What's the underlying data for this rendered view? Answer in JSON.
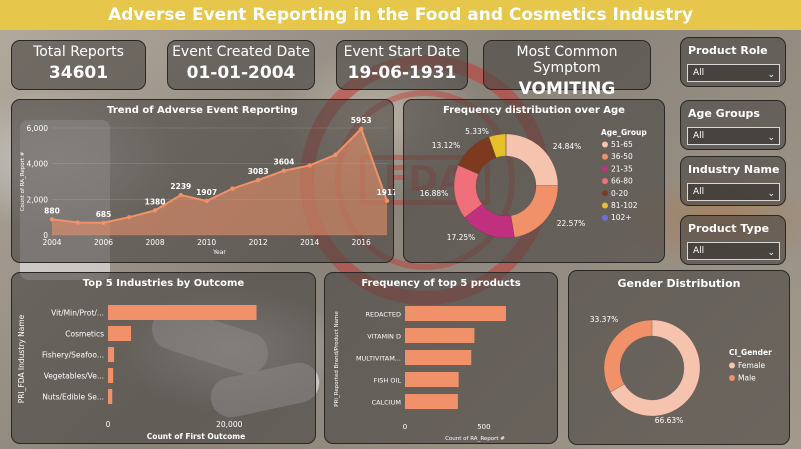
{
  "title": "Adverse Event Reporting in the Food and Cosmetics Industry",
  "kpis": {
    "total_reports": {
      "label": "Total Reports",
      "value": "34601"
    },
    "event_created": {
      "label": "Event Created Date",
      "value": "01-01-2004"
    },
    "event_start": {
      "label": "Event Start Date",
      "value": "19-06-1931"
    },
    "common_symptom": {
      "label": "Most Common Symptom",
      "value": "VOMITING"
    }
  },
  "slicers": [
    {
      "label": "Product Role",
      "value": "All"
    },
    {
      "label": "Age Groups",
      "value": "All"
    },
    {
      "label": "Industry Name",
      "value": "All"
    },
    {
      "label": "Product Type",
      "value": "All"
    }
  ],
  "colors": {
    "accent": "#e7c64c",
    "salmon": "#f0916a",
    "peach": "#f6c3ae"
  },
  "chart_data": [
    {
      "type": "area",
      "title": "Trend of Adverse Event Reporting",
      "xlabel": "Year",
      "ylabel": "Count of RA_Report #",
      "x": [
        2004,
        2005,
        2006,
        2007,
        2008,
        2009,
        2010,
        2011,
        2012,
        2013,
        2014,
        2015,
        2016,
        2017
      ],
      "values": [
        880,
        700,
        685,
        1000,
        1380,
        2239,
        1907,
        2600,
        3083,
        3604,
        3900,
        4500,
        5953,
        1917
      ],
      "data_labels": [
        {
          "year": 2004,
          "label": "880"
        },
        {
          "year": 2006,
          "label": "685"
        },
        {
          "year": 2008,
          "label": "1380"
        },
        {
          "year": 2009,
          "label": "2239"
        },
        {
          "year": 2010,
          "label": "1907"
        },
        {
          "year": 2012,
          "label": "3083"
        },
        {
          "year": 2013,
          "label": "3604"
        },
        {
          "year": 2016,
          "label": "5953"
        },
        {
          "year": 2017,
          "label": "1917"
        }
      ],
      "x_ticks": [
        "2004",
        "2006",
        "2008",
        "2010",
        "2012",
        "2014",
        "2016"
      ],
      "y_ticks": [
        "0",
        "2,000",
        "4,000",
        "6,000"
      ],
      "ylim": [
        0,
        6000
      ],
      "color": "#f0916a"
    },
    {
      "type": "pie",
      "title": "Frequency distribution over Age",
      "legend_title": "Age_Group",
      "legend_position": "right",
      "categories": [
        "51-65",
        "36-50",
        "21-35",
        "66-80",
        "0-20",
        "81-102",
        "102+"
      ],
      "values": [
        24.84,
        22.57,
        17.25,
        16.88,
        13.12,
        5.33,
        0.01
      ],
      "labels": [
        "24.84%",
        "22.57%",
        "17.25%",
        "16.88%",
        "13.12%",
        "5.33%",
        ""
      ],
      "colors": [
        "#f6c3ae",
        "#f0916a",
        "#c0307f",
        "#f06f7b",
        "#7d3a1f",
        "#e6c02a",
        "#6a6fe0"
      ]
    },
    {
      "type": "bar",
      "title": "Top 5 Industries by Outcome",
      "xlabel": "Count of First Outcome",
      "ylabel": "PRI_FDA Industry Name",
      "categories": [
        "Vit/Min/Prot/...",
        "Cosmetics",
        "Fishery/Seafoo...",
        "Vegetables/Ve...",
        "Nuts/Edible Se..."
      ],
      "values": [
        24500,
        3800,
        1000,
        850,
        700
      ],
      "x_ticks": [
        "0",
        "20,000"
      ],
      "xlim": [
        0,
        32000
      ]
    },
    {
      "type": "bar",
      "title": "Frequency of top 5 products",
      "xlabel": "Count of RA_Report #",
      "ylabel": "PRI_Reported Brand/Product Name",
      "categories": [
        "REDACTED",
        "VITAMIN D",
        "MULTIVITAM...",
        "FISH OIL",
        "CALCIUM"
      ],
      "values": [
        640,
        440,
        420,
        340,
        335
      ],
      "x_ticks": [
        "0",
        "500"
      ],
      "xlim": [
        0,
        900
      ]
    },
    {
      "type": "pie",
      "title": "Gender Distribution",
      "legend_title": "CI_Gender",
      "legend_position": "right",
      "categories": [
        "Female",
        "Male"
      ],
      "values": [
        66.63,
        33.37
      ],
      "labels": [
        "66.63%",
        "33.37%"
      ],
      "colors": [
        "#f6c3ae",
        "#f0916a"
      ]
    }
  ]
}
